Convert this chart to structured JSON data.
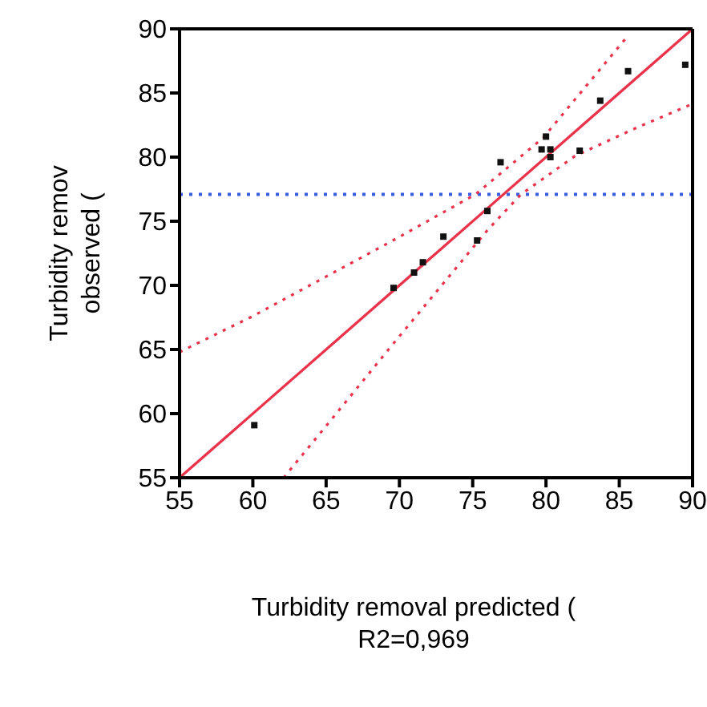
{
  "chart_data": {
    "type": "scatter",
    "xlabel": "Turbidity removal predicted (\nR2=0,969",
    "ylabel": "Turbidity remov\nobserved (",
    "xlim": [
      55,
      90
    ],
    "xticks": [
      55,
      60,
      65,
      70,
      75,
      80,
      85,
      90
    ],
    "ylim": [
      55,
      90
    ],
    "yticks": [
      55,
      60,
      65,
      70,
      75,
      80,
      85,
      90
    ],
    "series": [
      {
        "color": "#111111",
        "marker": "square",
        "x": [
          60.1,
          69.6,
          71.0,
          71.6,
          73.0,
          75.3,
          76.0,
          76.9,
          79.7,
          80.0,
          80.3,
          80.3,
          82.3,
          83.7,
          85.6,
          89.5
        ],
        "values": [
          59.1,
          69.8,
          71.0,
          71.8,
          73.8,
          73.5,
          75.8,
          79.6,
          80.6,
          81.6,
          80.6,
          80.0,
          80.5,
          84.4,
          86.7,
          87.2
        ]
      },
      {
        "type": "line",
        "color": "#e8334a",
        "line_style": "solid",
        "x": [
          55,
          90
        ],
        "values": [
          55,
          90
        ]
      },
      {
        "type": "line",
        "color": "#e8334a",
        "line_style": "dotted",
        "x": [
          55,
          60,
          69.4,
          75.2,
          79.8,
          85.4
        ],
        "values": [
          64.8,
          67.6,
          73.4,
          77.1,
          81.5,
          89.2
        ]
      },
      {
        "type": "line",
        "color": "#e8334a",
        "line_style": "dotted",
        "x": [
          62.1,
          64.9,
          69.4,
          73.1,
          76.0,
          78.3,
          82.0,
          86.2,
          89.9
        ],
        "values": [
          55,
          58.9,
          65.2,
          70.3,
          74.3,
          77.1,
          80.1,
          82.3,
          84.1
        ]
      }
    ],
    "ref_lines": [
      {
        "axis": "y",
        "value": 77.1,
        "color": "#3a5fe0",
        "line_style": "dotted"
      }
    ]
  }
}
